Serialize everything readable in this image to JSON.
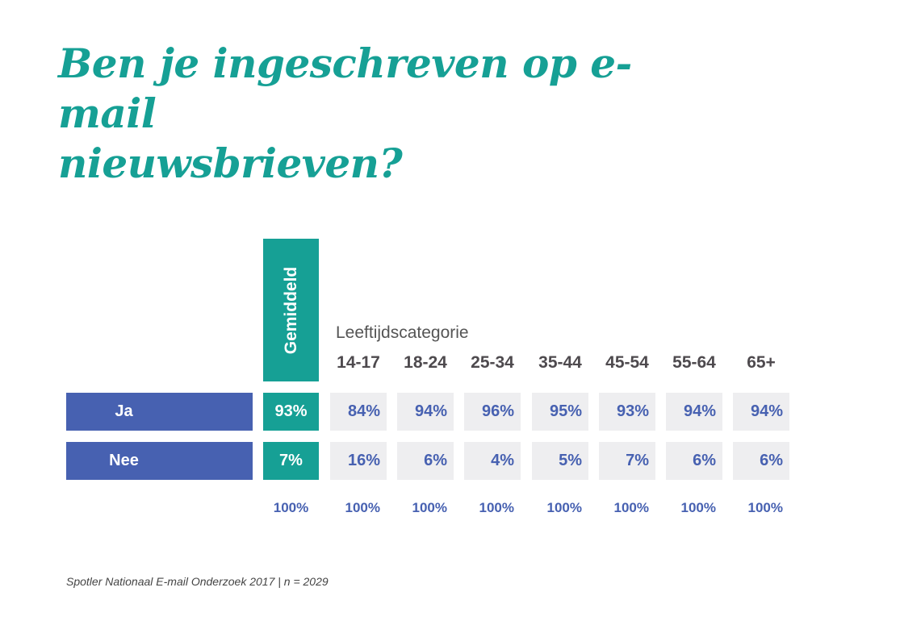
{
  "chart_data": {
    "type": "table",
    "title_lines": [
      "Ben je ingeschreven op e-mail",
      "nieuwsbrieven?"
    ],
    "average_header": "Gemiddeld",
    "group_label": "Leeftijdscategorie",
    "columns": [
      "14-17",
      "18-24",
      "25-34",
      "35-44",
      "45-54",
      "55-64",
      "65+"
    ],
    "rows": [
      {
        "label": "Ja",
        "average": "93%",
        "values": [
          "84%",
          "94%",
          "96%",
          "95%",
          "93%",
          "94%",
          "94%"
        ]
      },
      {
        "label": "Nee",
        "average": "7%",
        "values": [
          "16%",
          "6%",
          "4%",
          "5%",
          "7%",
          "6%",
          "6%"
        ]
      }
    ],
    "totals": {
      "average": "100%",
      "values": [
        "100%",
        "100%",
        "100%",
        "100%",
        "100%",
        "100%",
        "100%"
      ]
    },
    "footnote": "Spotler Nationaal E-mail Onderzoek 2017 | n = 2029"
  },
  "colors": {
    "teal": "#16a095",
    "blue": "#4761b1",
    "cell_background": "#eeeef0",
    "header_text": "#4e4a4e"
  }
}
